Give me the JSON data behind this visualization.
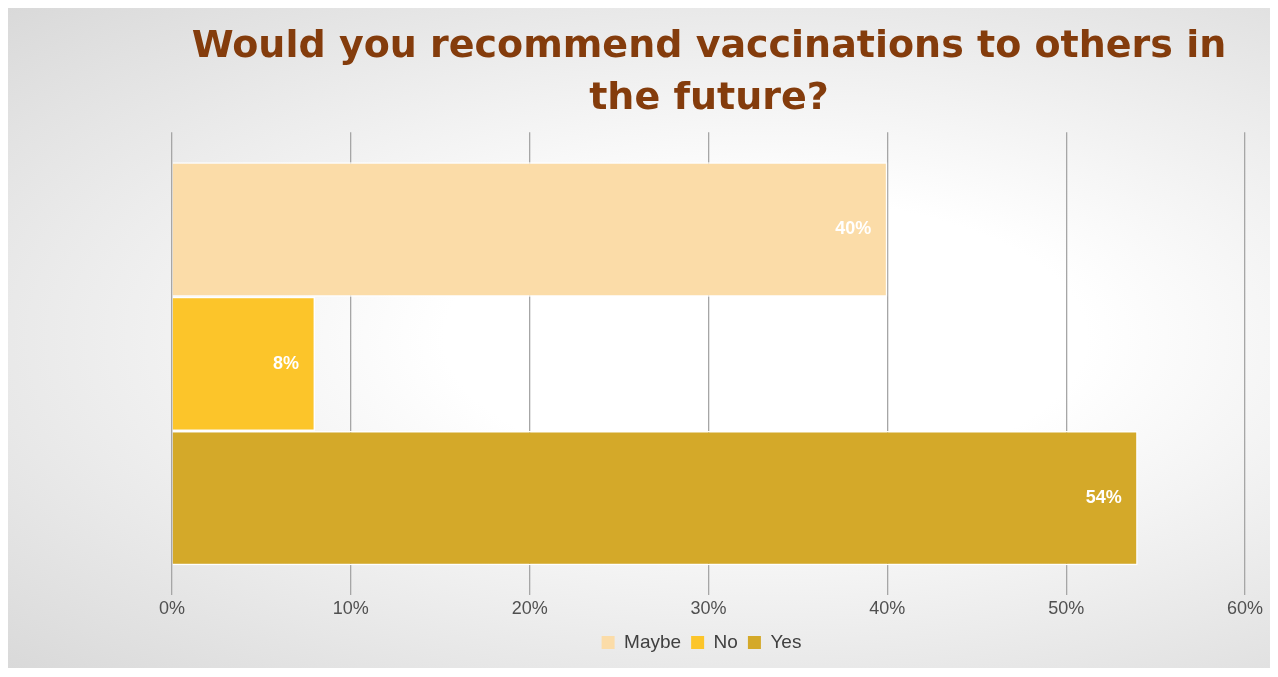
{
  "chart_data": {
    "type": "bar",
    "orientation": "horizontal",
    "title": "Would you recommend vaccinations to others in the future?",
    "categories": [
      null
    ],
    "series": [
      {
        "name": "Maybe",
        "color": "#fbdca8",
        "values": [
          40
        ],
        "value_labels": [
          "40%"
        ]
      },
      {
        "name": "No",
        "color": "#fcc52a",
        "values": [
          8
        ],
        "value_labels": [
          "8%"
        ]
      },
      {
        "name": "Yes",
        "color": "#d4a929",
        "values": [
          54
        ],
        "value_labels": [
          "54%"
        ]
      }
    ],
    "xlim": [
      0,
      60
    ],
    "xticks": [
      {
        "value": 0,
        "label": "0%"
      },
      {
        "value": 10,
        "label": "10%"
      },
      {
        "value": 20,
        "label": "20%"
      },
      {
        "value": 30,
        "label": "30%"
      },
      {
        "value": 40,
        "label": "40%"
      },
      {
        "value": 50,
        "label": "50%"
      },
      {
        "value": 60,
        "label": "60%"
      }
    ],
    "grid": "x",
    "legend": "bottom"
  }
}
